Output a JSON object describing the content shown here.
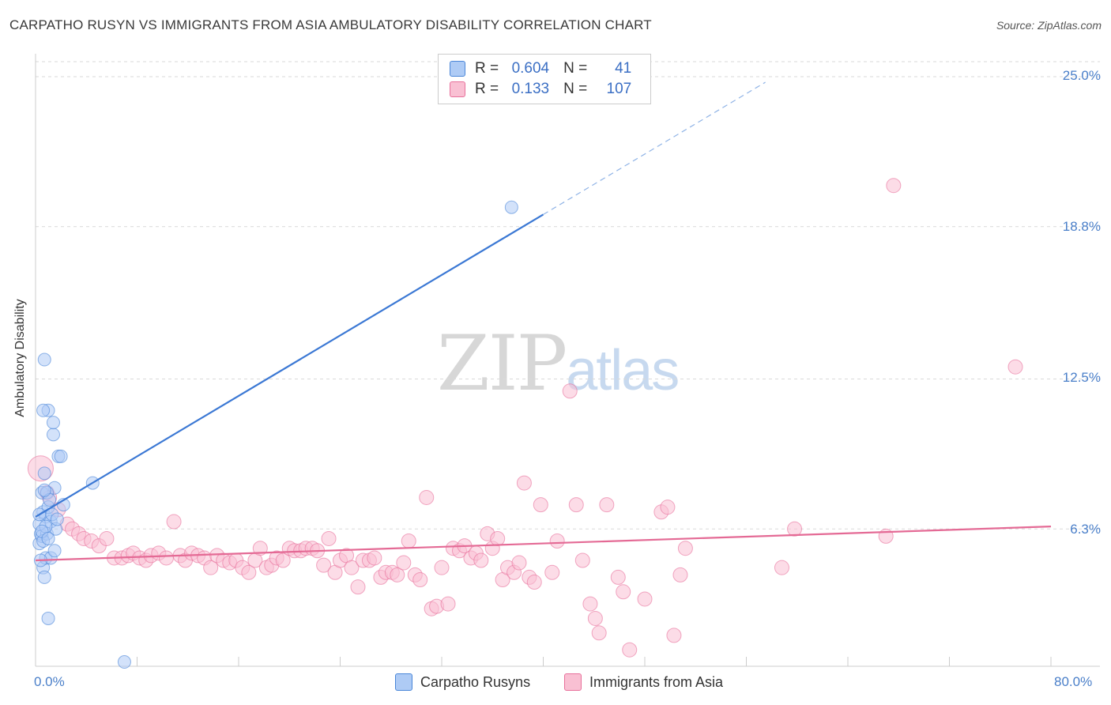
{
  "header": {
    "title": "CARPATHO RUSYN VS IMMIGRANTS FROM ASIA AMBULATORY DISABILITY CORRELATION CHART",
    "source": "Source: ZipAtlas.com"
  },
  "watermark": {
    "zip": "ZIP",
    "atlas": "atlas"
  },
  "legend_top": {
    "rows": [
      {
        "r_label": "R =",
        "r_value": "0.604",
        "n_label": "N =",
        "n_value": "41",
        "color": "#aecbf5"
      },
      {
        "r_label": "R =",
        "r_value": "0.133",
        "n_label": "N =",
        "n_value": "107",
        "color": "#f9c0d3"
      }
    ]
  },
  "legend_bottom": {
    "items": [
      {
        "label": "Carpatho Rusyns",
        "color": "#aecbf5"
      },
      {
        "label": "Immigrants from Asia",
        "color": "#f9c0d3"
      }
    ]
  },
  "chart_data": {
    "type": "scatter",
    "title": "CARPATHO RUSYN VS IMMIGRANTS FROM ASIA AMBULATORY DISABILITY CORRELATION CHART",
    "xlabel": "",
    "ylabel": "Ambulatory Disability",
    "xlim": [
      0,
      80
    ],
    "ylim": [
      0,
      26.25
    ],
    "x_tick_labels": [
      "0.0%",
      "80.0%"
    ],
    "y_ticks": [
      6.3,
      12.5,
      18.8,
      25.0
    ],
    "y_tick_labels": [
      "6.3%",
      "12.5%",
      "18.8%",
      "25.0%"
    ],
    "grid": true,
    "series": [
      {
        "name": "Carpatho Rusyns",
        "color": "#4a86d8",
        "fill": "#aecbf5",
        "trend": {
          "x0": 0,
          "y0": 6.8,
          "x1": 40,
          "y1": 19.3,
          "dashed_to_x": 57.5
        },
        "points": [
          [
            0.3,
            5.7
          ],
          [
            0.4,
            6.1
          ],
          [
            0.5,
            6.0
          ],
          [
            0.6,
            7.0
          ],
          [
            0.5,
            7.8
          ],
          [
            0.7,
            8.6
          ],
          [
            0.8,
            6.8
          ],
          [
            1.0,
            7.2
          ],
          [
            0.9,
            6.1
          ],
          [
            1.2,
            6.6
          ],
          [
            1.5,
            8.0
          ],
          [
            1.6,
            6.3
          ],
          [
            1.8,
            9.3
          ],
          [
            1.4,
            10.2
          ],
          [
            1.4,
            10.7
          ],
          [
            1.0,
            11.2
          ],
          [
            0.6,
            11.2
          ],
          [
            0.7,
            13.3
          ],
          [
            0.6,
            4.7
          ],
          [
            0.7,
            4.3
          ],
          [
            0.8,
            5.1
          ],
          [
            1.2,
            5.1
          ],
          [
            1.5,
            5.4
          ],
          [
            1.0,
            2.6
          ],
          [
            2.2,
            7.3
          ],
          [
            4.5,
            8.2
          ],
          [
            7.0,
            0.8
          ],
          [
            37.5,
            19.6
          ],
          [
            0.3,
            6.5
          ],
          [
            0.9,
            7.8
          ],
          [
            1.3,
            6.9
          ],
          [
            0.4,
            5.0
          ],
          [
            0.6,
            5.8
          ],
          [
            1.1,
            7.5
          ],
          [
            0.8,
            6.4
          ],
          [
            2.0,
            9.3
          ],
          [
            0.5,
            6.2
          ],
          [
            1.0,
            5.9
          ],
          [
            1.7,
            6.7
          ],
          [
            0.7,
            7.9
          ],
          [
            0.3,
            6.9
          ]
        ]
      },
      {
        "name": "Immigrants from Asia",
        "color": "#e8709b",
        "fill": "#f9c0d3",
        "trend": {
          "x0": 0,
          "y0": 5.0,
          "x1": 80,
          "y1": 6.4
        },
        "points": [
          [
            0.4,
            8.8
          ],
          [
            0.9,
            7.8
          ],
          [
            1.1,
            7.6
          ],
          [
            1.8,
            7.1
          ],
          [
            2.5,
            6.5
          ],
          [
            2.9,
            6.3
          ],
          [
            3.4,
            6.1
          ],
          [
            3.8,
            5.9
          ],
          [
            4.4,
            5.8
          ],
          [
            5.0,
            5.6
          ],
          [
            5.6,
            5.9
          ],
          [
            6.2,
            5.1
          ],
          [
            6.8,
            5.1
          ],
          [
            7.3,
            5.2
          ],
          [
            7.7,
            5.3
          ],
          [
            8.2,
            5.1
          ],
          [
            8.7,
            5.0
          ],
          [
            9.1,
            5.2
          ],
          [
            9.7,
            5.3
          ],
          [
            10.3,
            5.1
          ],
          [
            10.9,
            6.6
          ],
          [
            11.4,
            5.2
          ],
          [
            11.8,
            5.0
          ],
          [
            12.3,
            5.3
          ],
          [
            12.8,
            5.2
          ],
          [
            13.3,
            5.1
          ],
          [
            13.8,
            4.7
          ],
          [
            14.3,
            5.2
          ],
          [
            14.8,
            5.0
          ],
          [
            15.3,
            4.9
          ],
          [
            15.8,
            5.0
          ],
          [
            16.3,
            4.7
          ],
          [
            16.8,
            4.5
          ],
          [
            17.3,
            5.0
          ],
          [
            17.7,
            5.5
          ],
          [
            18.2,
            4.7
          ],
          [
            18.6,
            4.8
          ],
          [
            19.0,
            5.1
          ],
          [
            19.5,
            5.0
          ],
          [
            20.0,
            5.5
          ],
          [
            20.4,
            5.4
          ],
          [
            20.9,
            5.4
          ],
          [
            21.3,
            5.5
          ],
          [
            21.8,
            5.5
          ],
          [
            22.2,
            5.4
          ],
          [
            22.7,
            4.8
          ],
          [
            23.1,
            5.9
          ],
          [
            23.6,
            4.5
          ],
          [
            24.0,
            5.0
          ],
          [
            24.5,
            5.2
          ],
          [
            24.9,
            4.7
          ],
          [
            25.4,
            3.9
          ],
          [
            25.8,
            5.0
          ],
          [
            26.3,
            5.0
          ],
          [
            26.7,
            5.1
          ],
          [
            27.2,
            4.3
          ],
          [
            27.6,
            4.5
          ],
          [
            28.1,
            4.5
          ],
          [
            28.5,
            4.4
          ],
          [
            29.0,
            4.9
          ],
          [
            29.4,
            5.8
          ],
          [
            29.9,
            4.4
          ],
          [
            30.3,
            4.2
          ],
          [
            30.8,
            7.6
          ],
          [
            31.2,
            3.0
          ],
          [
            31.6,
            3.1
          ],
          [
            32.0,
            4.7
          ],
          [
            32.5,
            3.2
          ],
          [
            32.9,
            5.5
          ],
          [
            33.4,
            5.4
          ],
          [
            33.8,
            5.6
          ],
          [
            34.3,
            5.1
          ],
          [
            34.7,
            5.3
          ],
          [
            35.1,
            5.0
          ],
          [
            35.6,
            6.1
          ],
          [
            36.0,
            5.5
          ],
          [
            36.4,
            5.9
          ],
          [
            36.8,
            4.2
          ],
          [
            37.2,
            4.7
          ],
          [
            37.7,
            4.5
          ],
          [
            38.1,
            4.9
          ],
          [
            38.5,
            8.2
          ],
          [
            38.9,
            4.3
          ],
          [
            39.3,
            4.1
          ],
          [
            39.8,
            7.3
          ],
          [
            40.7,
            4.5
          ],
          [
            41.1,
            5.8
          ],
          [
            42.1,
            12.0
          ],
          [
            42.6,
            7.3
          ],
          [
            43.1,
            5.0
          ],
          [
            43.7,
            3.2
          ],
          [
            44.1,
            2.6
          ],
          [
            44.4,
            2.0
          ],
          [
            45.0,
            7.3
          ],
          [
            45.9,
            4.3
          ],
          [
            46.3,
            3.7
          ],
          [
            46.8,
            1.3
          ],
          [
            48.0,
            3.4
          ],
          [
            49.3,
            7.0
          ],
          [
            49.8,
            7.2
          ],
          [
            50.3,
            1.9
          ],
          [
            50.8,
            4.4
          ],
          [
            51.2,
            5.5
          ],
          [
            58.8,
            4.7
          ],
          [
            59.8,
            6.3
          ],
          [
            67.0,
            6.0
          ],
          [
            67.6,
            20.5
          ],
          [
            77.2,
            13.0
          ]
        ]
      }
    ]
  }
}
